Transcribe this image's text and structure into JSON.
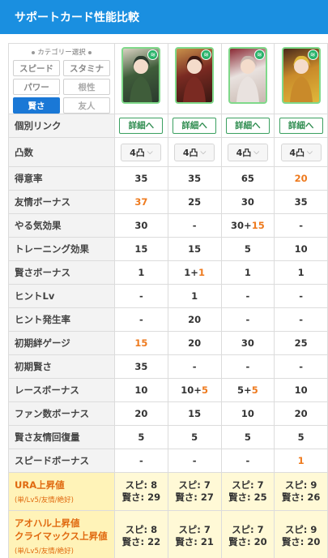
{
  "header": {
    "title": "サポートカード性能比較"
  },
  "selector": {
    "title": "カテゴリー選択",
    "types": [
      {
        "label": "スピード",
        "state": "normal"
      },
      {
        "label": "スタミナ",
        "state": "normal"
      },
      {
        "label": "パワー",
        "state": "normal"
      },
      {
        "label": "根性",
        "state": "disabled"
      },
      {
        "label": "賢さ",
        "state": "active"
      },
      {
        "label": "友人",
        "state": "disabled"
      }
    ]
  },
  "cards": [
    {
      "name": "card-1",
      "palette": [
        "#3f5d3a",
        "#d9d2c2",
        "#2b3a2e"
      ],
      "badge": "≋"
    },
    {
      "name": "card-2",
      "palette": [
        "#7a2a22",
        "#c8914a",
        "#3a1812"
      ],
      "badge": "≋"
    },
    {
      "name": "card-3",
      "palette": [
        "#e9e2df",
        "#8b2a35",
        "#c9b8b0"
      ],
      "badge": "≋"
    },
    {
      "name": "card-4",
      "palette": [
        "#c98a2a",
        "#4a2a1a",
        "#e0b83a"
      ],
      "badge": "≋"
    }
  ],
  "rows": [
    {
      "label": "個別リンク",
      "type": "link",
      "values": [
        "詳細へ",
        "詳細へ",
        "詳細へ",
        "詳細へ"
      ]
    },
    {
      "label": "凸数",
      "type": "select",
      "values": [
        "4凸",
        "4凸",
        "4凸",
        "4凸"
      ]
    },
    {
      "label": "得意率",
      "values": [
        [
          {
            "t": "35"
          }
        ],
        [
          {
            "t": "35"
          }
        ],
        [
          {
            "t": "65"
          }
        ],
        [
          {
            "t": "20",
            "o": true
          }
        ]
      ]
    },
    {
      "label": "友情ボーナス",
      "values": [
        [
          {
            "t": "37",
            "o": true
          }
        ],
        [
          {
            "t": "25"
          }
        ],
        [
          {
            "t": "30"
          }
        ],
        [
          {
            "t": "35"
          }
        ]
      ]
    },
    {
      "label": "やる気効果",
      "values": [
        [
          {
            "t": "30"
          }
        ],
        [
          {
            "t": "-"
          }
        ],
        [
          {
            "t": "30+"
          },
          {
            "t": "15",
            "o": true
          }
        ],
        [
          {
            "t": "-"
          }
        ]
      ]
    },
    {
      "label": "トレーニング効果",
      "values": [
        [
          {
            "t": "15"
          }
        ],
        [
          {
            "t": "15"
          }
        ],
        [
          {
            "t": "5"
          }
        ],
        [
          {
            "t": "10"
          }
        ]
      ]
    },
    {
      "label": "賢さボーナス",
      "values": [
        [
          {
            "t": "1"
          }
        ],
        [
          {
            "t": "1+"
          },
          {
            "t": "1",
            "o": true
          }
        ],
        [
          {
            "t": "1"
          }
        ],
        [
          {
            "t": "1"
          }
        ]
      ]
    },
    {
      "label": "ヒントLv",
      "values": [
        [
          {
            "t": "-"
          }
        ],
        [
          {
            "t": "1"
          }
        ],
        [
          {
            "t": "-"
          }
        ],
        [
          {
            "t": "-"
          }
        ]
      ]
    },
    {
      "label": "ヒント発生率",
      "values": [
        [
          {
            "t": "-"
          }
        ],
        [
          {
            "t": "20"
          }
        ],
        [
          {
            "t": "-"
          }
        ],
        [
          {
            "t": "-"
          }
        ]
      ]
    },
    {
      "label": "初期絆ゲージ",
      "values": [
        [
          {
            "t": "15",
            "o": true
          }
        ],
        [
          {
            "t": "20"
          }
        ],
        [
          {
            "t": "30"
          }
        ],
        [
          {
            "t": "25"
          }
        ]
      ]
    },
    {
      "label": "初期賢さ",
      "values": [
        [
          {
            "t": "35"
          }
        ],
        [
          {
            "t": "-"
          }
        ],
        [
          {
            "t": "-"
          }
        ],
        [
          {
            "t": "-"
          }
        ]
      ]
    },
    {
      "label": "レースボーナス",
      "values": [
        [
          {
            "t": "10"
          }
        ],
        [
          {
            "t": "10+"
          },
          {
            "t": "5",
            "o": true
          }
        ],
        [
          {
            "t": "5+"
          },
          {
            "t": "5",
            "o": true
          }
        ],
        [
          {
            "t": "10"
          }
        ]
      ]
    },
    {
      "label": "ファン数ボーナス",
      "values": [
        [
          {
            "t": "20"
          }
        ],
        [
          {
            "t": "15"
          }
        ],
        [
          {
            "t": "10"
          }
        ],
        [
          {
            "t": "20"
          }
        ]
      ]
    },
    {
      "label": "賢さ友情回復量",
      "values": [
        [
          {
            "t": "5"
          }
        ],
        [
          {
            "t": "5"
          }
        ],
        [
          {
            "t": "5"
          }
        ],
        [
          {
            "t": "5"
          }
        ]
      ]
    },
    {
      "label": "スピードボーナス",
      "values": [
        [
          {
            "t": "-"
          }
        ],
        [
          {
            "t": "-"
          }
        ],
        [
          {
            "t": "-"
          }
        ],
        [
          {
            "t": "1",
            "o": true
          }
        ]
      ]
    }
  ],
  "ura_rows": [
    {
      "label_lines": [
        "URA上昇値"
      ],
      "sub": "(単/Lv5/友情/絶好)",
      "values": [
        [
          "スピ: 8",
          "賢さ: 29"
        ],
        [
          "スピ: 7",
          "賢さ: 27"
        ],
        [
          "スピ: 7",
          "賢さ: 25"
        ],
        [
          "スピ: 9",
          "賢さ: 26"
        ]
      ]
    },
    {
      "label_lines": [
        "アオハル上昇値",
        "クライマックス上昇値"
      ],
      "sub": "(単/Lv5/友情/絶好)",
      "values": [
        [
          "スピ: 8",
          "賢さ: 22"
        ],
        [
          "スピ: 7",
          "賢さ: 21"
        ],
        [
          "スピ: 7",
          "賢さ: 20"
        ],
        [
          "スピ: 9",
          "賢さ: 20"
        ]
      ]
    }
  ]
}
